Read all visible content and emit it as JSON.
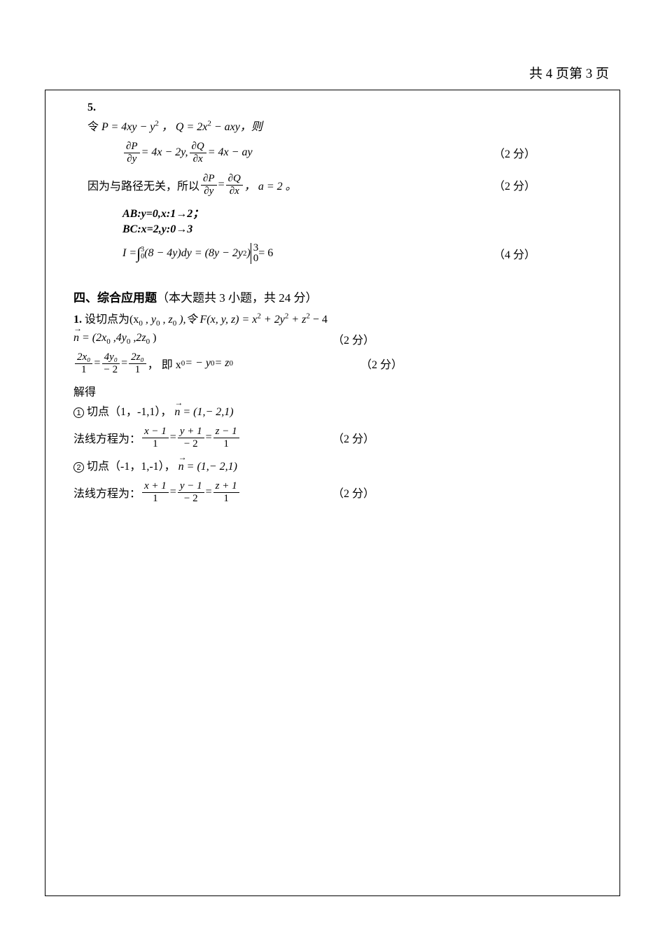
{
  "header": {
    "text": "共 4 页第 3 页"
  },
  "problem5": {
    "number": "5.",
    "line1_pre": "令 ",
    "line1_P": "P = 4xy − y",
    "line1_Pexp": "2",
    "line1_mid": "，  Q = 2x",
    "line1_Qexp": "2",
    "line1_post": " − axy，则",
    "partial_P_num": "∂P",
    "partial_P_den": "∂y",
    "partial_eq1": " = 4x − 2y, ",
    "partial_Q_num": "∂Q",
    "partial_Q_den": "∂x",
    "partial_eq2": " = 4x − ay",
    "score_2a": "（2 分）",
    "line3_pre": "因为与路径无关，所以  ",
    "line3_mid": " = ",
    "line3_post": "，  a = 2 。",
    "score_2b": "（2 分）",
    "AB": "AB:y=0,x:1→2；",
    "BC": "BC:x=2,y:0→3",
    "I_pre": "I  = ",
    "int_lower": "0",
    "int_upper": "3",
    "I_integrand": "(8 −  4y)dy = (8y − 2y",
    "I_exp": "2",
    "I_close": ")",
    "eval_top": "3",
    "eval_bot": "0",
    "I_result": " = 6",
    "score_4": "（4 分）"
  },
  "section4": {
    "title_bold": "四、综合应用题",
    "title_rest": "（本大题共 3 小题，共 24 分）",
    "p1_num": "1.",
    "p1_text1": " 设切点为(x",
    "p1_sub0a": "0",
    "p1_text2": ", y",
    "p1_sub0b": "0",
    "p1_text3": ", z",
    "p1_sub0c": "0",
    "p1_text4": "),令 F(x, y, z) = x",
    "p1_exp2a": "2",
    "p1_text5": " + 2y",
    "p1_exp2b": "2",
    "p1_text6": " + z",
    "p1_exp2c": "2",
    "p1_text7": " − 4",
    "n_vec": "n",
    "n_eq": " = (2x",
    "n_sub1": "0",
    "n_mid": ",4y",
    "n_sub2": "0",
    "n_mid2": ",2z",
    "n_sub3": "0",
    "n_close": ")",
    "score_2c": "（2 分）",
    "frac_2x0_num": "2x₀",
    "frac_1_den": "1",
    "eq": " = ",
    "frac_4y0_num": "4y₀",
    "frac_neg2_den": "− 2",
    "frac_2z0_num": "2z₀",
    "cond_text": " ，   即 x",
    "cond_sub1": "0",
    "cond_mid": " = − y",
    "cond_sub2": "0",
    "cond_mid2": " = z",
    "cond_sub3": "0",
    "score_2d": "（2 分）",
    "solve": "解得",
    "c1": "1",
    "c1_text": "   切点（1，-1,1），",
    "c1_n": "n",
    "c1_nval": " = (1,− 2,1)",
    "normal_label": "法线方程为：",
    "nl1_f1n": "x − 1",
    "nl1_f1d": "1",
    "nl1_f2n": "y + 1",
    "nl1_f2d": "− 2",
    "nl1_f3n": "z − 1",
    "nl1_f3d": "1",
    "score_2e": "（2 分）",
    "c2": "2",
    "c2_text": "   切点（-1，1,-1），",
    "c2_n": "n",
    "c2_nval": " = (1,− 2,1)",
    "nl2_f1n": "x + 1",
    "nl2_f1d": "1",
    "nl2_f2n": "y − 1",
    "nl2_f2d": "− 2",
    "nl2_f3n": "z + 1",
    "nl2_f3d": "1",
    "score_2f": "（2 分）"
  }
}
